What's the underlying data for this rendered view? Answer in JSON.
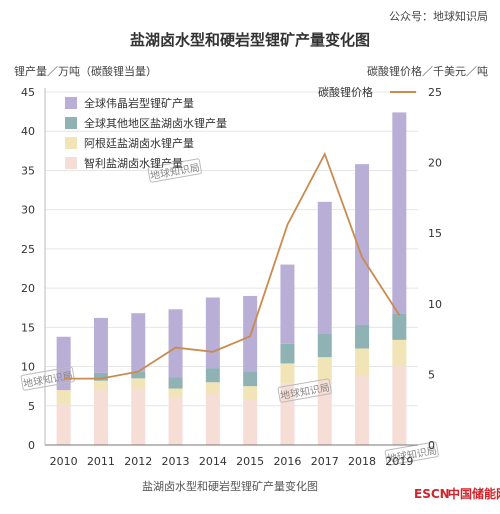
{
  "header": {
    "source_label": "公众号：地球知识局"
  },
  "chart_data": {
    "type": "bar",
    "title": "盐湖卤水型和硬岩型锂矿产量变化图",
    "ylabel": "锂产量／万吨（碳酸锂当量）",
    "y2label": "碳酸锂价格／千美元／吨",
    "ylim": [
      0,
      45
    ],
    "y2lim": [
      0,
      25
    ],
    "yticks": [
      0,
      5,
      10,
      15,
      20,
      25,
      30,
      35,
      40,
      45
    ],
    "y2ticks": [
      0,
      5,
      10,
      15,
      20,
      25
    ],
    "categories": [
      "2010",
      "2011",
      "2012",
      "2013",
      "2014",
      "2015",
      "2016",
      "2017",
      "2018",
      "2019"
    ],
    "stacked": true,
    "series": [
      {
        "name": "智利盐湖卤水锂产量",
        "color": "#f6ddd5",
        "values": [
          5.2,
          7.0,
          7.2,
          6.0,
          6.5,
          5.8,
          7.8,
          8.2,
          8.8,
          10.2
        ]
      },
      {
        "name": "阿根廷盐湖卤水锂产量",
        "color": "#f1e4b6",
        "values": [
          1.8,
          1.2,
          1.3,
          1.2,
          1.5,
          1.7,
          2.6,
          3.0,
          3.5,
          3.2
        ]
      },
      {
        "name": "全球其他地区盐湖卤水锂产量",
        "color": "#8fb2b4",
        "values": [
          0.0,
          1.0,
          0.8,
          1.4,
          1.8,
          1.9,
          2.5,
          3.0,
          3.0,
          3.3
        ]
      },
      {
        "name": "全球伟晶岩型锂矿产量",
        "color": "#b8aed6",
        "values": [
          6.8,
          7.0,
          7.5,
          8.7,
          9.0,
          9.6,
          10.1,
          16.8,
          20.5,
          25.7
        ]
      }
    ],
    "line": {
      "name": "碳酸锂价格",
      "color": "#c98b4f",
      "axis": "right",
      "values": [
        4.7,
        4.7,
        5.2,
        6.9,
        6.6,
        7.7,
        15.6,
        20.6,
        13.3,
        9.2
      ]
    },
    "legend_position": "top-left"
  },
  "watermarks": [
    "地球知识局",
    "地球知识局",
    "地球知识局",
    "地球知识局"
  ],
  "footer": {
    "caption": "盐湖卤水型和硬岩型锂矿产量变化图",
    "brand_prefix": "ESCN",
    "brand_suffix": "中国储能网",
    "brand_colors": {
      "prefix": "#d2232a",
      "suffix": "#d2232a"
    }
  }
}
